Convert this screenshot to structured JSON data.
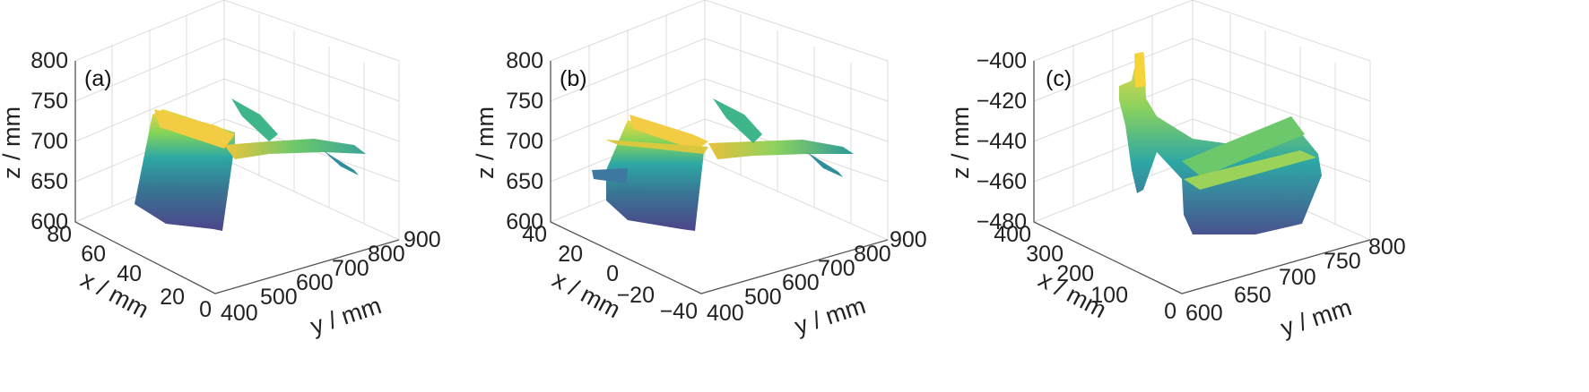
{
  "colors": {
    "viridis_low": "#433b84",
    "viridis_mid": "#22a3a0",
    "viridis_high": "#f5d43a",
    "grid": "#dcdcdc",
    "axis": "#555555"
  },
  "chart_data": [
    {
      "type": "surface3d",
      "panel_label": "(a)",
      "xlabel": "x / mm",
      "ylabel": "y / mm",
      "zlabel": "z / mm",
      "x_ticks": [
        "0",
        "20",
        "40",
        "60",
        "80"
      ],
      "xlim": [
        0,
        80
      ],
      "y_ticks": [
        "400",
        "500",
        "600",
        "700",
        "800",
        "900"
      ],
      "ylim": [
        400,
        900
      ],
      "z_ticks": [
        "600",
        "650",
        "700",
        "750",
        "800"
      ],
      "zlim": [
        600,
        800
      ],
      "grid": true
    },
    {
      "type": "surface3d",
      "panel_label": "(b)",
      "xlabel": "x / mm",
      "ylabel": "y / mm",
      "zlabel": "z / mm",
      "x_ticks": [
        "−40",
        "−20",
        "0",
        "20",
        "40"
      ],
      "xlim": [
        -40,
        40
      ],
      "y_ticks": [
        "400",
        "500",
        "600",
        "700",
        "800",
        "900"
      ],
      "ylim": [
        400,
        900
      ],
      "z_ticks": [
        "600",
        "650",
        "700",
        "750",
        "800"
      ],
      "zlim": [
        600,
        800
      ],
      "grid": true
    },
    {
      "type": "surface3d",
      "panel_label": "(c)",
      "xlabel": "x / mm",
      "ylabel": "y / mm",
      "zlabel": "z / mm",
      "x_ticks": [
        "0",
        "100",
        "200",
        "300",
        "400"
      ],
      "xlim": [
        0,
        400
      ],
      "y_ticks": [
        "600",
        "650",
        "700",
        "750",
        "800"
      ],
      "ylim": [
        600,
        800
      ],
      "z_ticks": [
        "−480",
        "−460",
        "−440",
        "−420",
        "−400"
      ],
      "zlim": [
        -480,
        -400
      ],
      "grid": true
    }
  ]
}
